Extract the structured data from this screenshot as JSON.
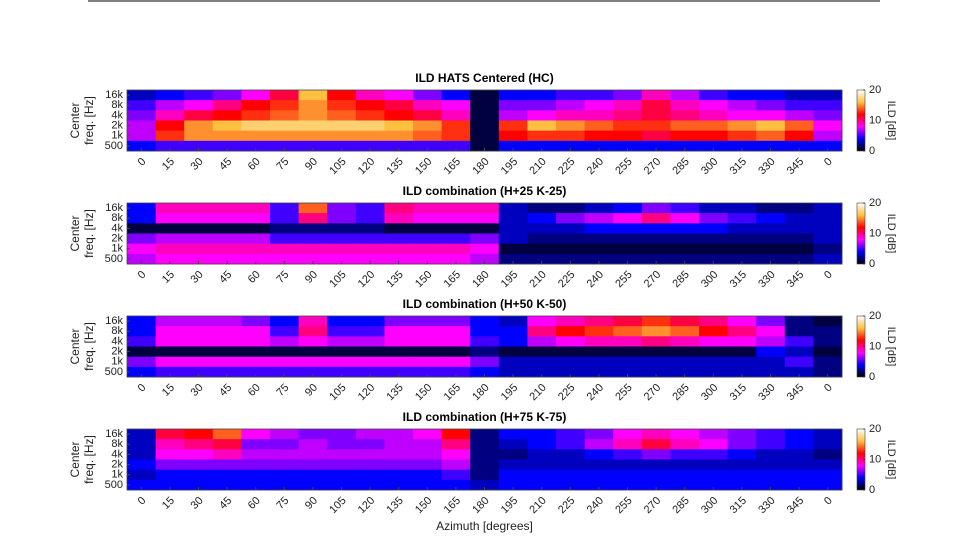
{
  "chart_data": [
    {
      "type": "heatmap",
      "title": "ILD HATS Centered (HC)",
      "categories": [
        "0",
        "15",
        "30",
        "45",
        "60",
        "75",
        "90",
        "105",
        "120",
        "135",
        "150",
        "165",
        "180",
        "195",
        "210",
        "225",
        "240",
        "255",
        "270",
        "285",
        "300",
        "315",
        "330",
        "345",
        "0"
      ],
      "y_categories": [
        "16k",
        "8k",
        "4k",
        "2k",
        "1k",
        "500"
      ],
      "ylabel": [
        "Center",
        "freq. [Hz]"
      ],
      "values": [
        [
          3,
          4,
          5,
          6,
          8,
          11,
          16,
          12,
          9,
          8,
          6,
          4,
          1,
          4,
          4,
          5,
          5,
          6,
          9,
          7,
          5,
          4,
          4,
          3,
          3
        ],
        [
          5,
          7,
          8,
          10,
          12,
          13,
          15,
          13,
          12,
          11,
          9,
          8,
          1,
          6,
          6,
          7,
          8,
          9,
          11,
          9,
          8,
          7,
          6,
          5,
          5
        ],
        [
          6,
          9,
          11,
          12,
          13,
          14,
          15,
          14,
          13,
          12,
          11,
          9,
          1,
          7,
          8,
          9,
          9,
          10,
          11,
          10,
          9,
          8,
          8,
          7,
          6
        ],
        [
          7,
          12,
          15,
          16,
          17,
          17,
          17,
          17,
          17,
          16,
          15,
          13,
          1,
          13,
          16,
          15,
          14,
          13,
          13,
          14,
          14,
          15,
          16,
          14,
          8
        ],
        [
          7,
          13,
          15,
          15,
          15,
          15,
          15,
          15,
          15,
          15,
          14,
          13,
          1,
          12,
          13,
          13,
          12,
          12,
          11,
          12,
          12,
          13,
          14,
          12,
          7
        ],
        [
          4,
          5,
          5,
          5,
          5,
          5,
          5,
          5,
          5,
          5,
          5,
          5,
          1,
          4,
          4,
          4,
          4,
          4,
          4,
          4,
          4,
          4,
          4,
          4,
          4
        ]
      ],
      "clim": [
        0,
        20
      ],
      "colorbar_ticks": [
        0,
        10,
        20
      ],
      "colorbar_label": "ILD [dB]",
      "colormap": [
        "#000000",
        "#0000ff",
        "#ff00ff",
        "#ff0000",
        "#ffc040",
        "#ffffff"
      ]
    },
    {
      "type": "heatmap",
      "title": "ILD combination (H+25 K-25)",
      "categories": [
        "0",
        "15",
        "30",
        "45",
        "60",
        "75",
        "90",
        "105",
        "120",
        "135",
        "150",
        "165",
        "180",
        "195",
        "210",
        "225",
        "240",
        "255",
        "270",
        "285",
        "300",
        "315",
        "330",
        "345",
        "0"
      ],
      "y_categories": [
        "16k",
        "8k",
        "4k",
        "2k",
        "1k",
        "500"
      ],
      "ylabel": [
        "Center",
        "freq. [Hz]"
      ],
      "values": [
        [
          4,
          9,
          9,
          9,
          9,
          5,
          14,
          6,
          5,
          10,
          9,
          9,
          9,
          3,
          2,
          2,
          3,
          4,
          6,
          5,
          3,
          3,
          2,
          2,
          3
        ],
        [
          4,
          8,
          8,
          8,
          8,
          5,
          10,
          6,
          5,
          9,
          8,
          8,
          8,
          3,
          4,
          6,
          7,
          8,
          10,
          8,
          6,
          5,
          4,
          3,
          3
        ],
        [
          1,
          1,
          1,
          1,
          1,
          2,
          2,
          2,
          2,
          1,
          1,
          1,
          1,
          3,
          3,
          3,
          4,
          4,
          4,
          4,
          4,
          3,
          3,
          3,
          3
        ],
        [
          6,
          7,
          7,
          7,
          7,
          5,
          5,
          5,
          5,
          5,
          5,
          5,
          6,
          3,
          2,
          2,
          2,
          2,
          2,
          2,
          2,
          2,
          2,
          2,
          3
        ],
        [
          8,
          9,
          9,
          9,
          9,
          9,
          9,
          9,
          9,
          9,
          9,
          9,
          8,
          1,
          1,
          1,
          1,
          1,
          1,
          1,
          1,
          1,
          1,
          1,
          2
        ],
        [
          7,
          8,
          8,
          8,
          8,
          8,
          8,
          8,
          8,
          8,
          8,
          8,
          7,
          2,
          2,
          2,
          2,
          2,
          2,
          2,
          2,
          2,
          2,
          2,
          3
        ]
      ],
      "clim": [
        0,
        20
      ],
      "colorbar_ticks": [
        0,
        10,
        20
      ],
      "colorbar_label": "ILD [dB]",
      "colormap": [
        "#000000",
        "#0000ff",
        "#ff00ff",
        "#ff0000",
        "#ffc040",
        "#ffffff"
      ]
    },
    {
      "type": "heatmap",
      "title": "ILD combination (H+50 K-50)",
      "categories": [
        "0",
        "15",
        "30",
        "45",
        "60",
        "75",
        "90",
        "105",
        "120",
        "135",
        "150",
        "165",
        "180",
        "195",
        "210",
        "225",
        "240",
        "255",
        "270",
        "285",
        "300",
        "315",
        "330",
        "345",
        "0"
      ],
      "y_categories": [
        "16k",
        "8k",
        "4k",
        "2k",
        "1k",
        "500"
      ],
      "ylabel": [
        "Center",
        "freq. [Hz]"
      ],
      "values": [
        [
          4,
          7,
          7,
          7,
          6,
          4,
          9,
          4,
          4,
          6,
          6,
          6,
          4,
          3,
          8,
          9,
          10,
          11,
          13,
          11,
          10,
          8,
          6,
          2,
          1
        ],
        [
          4,
          8,
          8,
          8,
          8,
          5,
          10,
          5,
          5,
          8,
          8,
          8,
          4,
          4,
          10,
          12,
          13,
          14,
          15,
          14,
          12,
          10,
          8,
          2,
          2
        ],
        [
          5,
          8,
          8,
          8,
          8,
          7,
          8,
          7,
          7,
          8,
          8,
          8,
          5,
          4,
          7,
          8,
          9,
          9,
          10,
          9,
          8,
          8,
          7,
          5,
          2
        ],
        [
          1,
          1,
          1,
          1,
          1,
          1,
          1,
          1,
          1,
          1,
          1,
          1,
          2,
          1,
          1,
          1,
          1,
          1,
          1,
          1,
          1,
          1,
          4,
          3,
          1
        ],
        [
          6,
          8,
          8,
          8,
          8,
          8,
          8,
          8,
          8,
          8,
          8,
          8,
          6,
          3,
          3,
          3,
          3,
          3,
          3,
          3,
          3,
          3,
          3,
          5,
          2
        ],
        [
          4,
          5,
          5,
          5,
          5,
          5,
          5,
          5,
          5,
          5,
          5,
          5,
          4,
          3,
          3,
          3,
          3,
          3,
          3,
          3,
          3,
          3,
          3,
          3,
          2
        ]
      ],
      "clim": [
        0,
        20
      ],
      "colorbar_ticks": [
        0,
        10,
        20
      ],
      "colorbar_label": "ILD [dB]",
      "colormap": [
        "#000000",
        "#0000ff",
        "#ff00ff",
        "#ff0000",
        "#ffc040",
        "#ffffff"
      ]
    },
    {
      "type": "heatmap",
      "title": "ILD combination (H+75 K-75)",
      "categories": [
        "0",
        "15",
        "30",
        "45",
        "60",
        "75",
        "90",
        "105",
        "120",
        "135",
        "150",
        "165",
        "180",
        "195",
        "210",
        "225",
        "240",
        "255",
        "270",
        "285",
        "300",
        "315",
        "330",
        "345",
        "0"
      ],
      "y_categories": [
        "16k",
        "8k",
        "4k",
        "2k",
        "1k",
        "500"
      ],
      "ylabel": [
        "Center",
        "freq. [Hz]"
      ],
      "xlabel": "Azimuth [degrees]",
      "values": [
        [
          3,
          11,
          12,
          14,
          8,
          7,
          6,
          6,
          7,
          7,
          8,
          12,
          2,
          4,
          4,
          5,
          6,
          8,
          9,
          8,
          7,
          6,
          5,
          4,
          3
        ],
        [
          3,
          9,
          10,
          11,
          6,
          6,
          7,
          6,
          6,
          7,
          7,
          10,
          2,
          3,
          4,
          5,
          7,
          9,
          11,
          9,
          8,
          6,
          5,
          4,
          3
        ],
        [
          3,
          8,
          8,
          9,
          7,
          7,
          7,
          7,
          7,
          7,
          7,
          8,
          2,
          2,
          3,
          3,
          4,
          5,
          6,
          5,
          5,
          4,
          3,
          3,
          2
        ],
        [
          4,
          6,
          6,
          6,
          6,
          6,
          6,
          6,
          6,
          6,
          6,
          7,
          2,
          3,
          3,
          3,
          3,
          3,
          3,
          3,
          3,
          3,
          3,
          3,
          3
        ],
        [
          3,
          4,
          4,
          4,
          4,
          4,
          4,
          4,
          4,
          4,
          4,
          5,
          2,
          4,
          4,
          4,
          4,
          4,
          4,
          4,
          4,
          4,
          4,
          4,
          4
        ],
        [
          4,
          4,
          4,
          4,
          4,
          4,
          4,
          4,
          4,
          4,
          4,
          4,
          3,
          4,
          4,
          4,
          4,
          4,
          4,
          4,
          4,
          4,
          4,
          4,
          4
        ]
      ],
      "clim": [
        0,
        20
      ],
      "colorbar_ticks": [
        0,
        10,
        20
      ],
      "colorbar_label": "ILD [dB]",
      "colormap": [
        "#000000",
        "#0000ff",
        "#ff00ff",
        "#ff0000",
        "#ffc040",
        "#ffffff"
      ]
    }
  ]
}
